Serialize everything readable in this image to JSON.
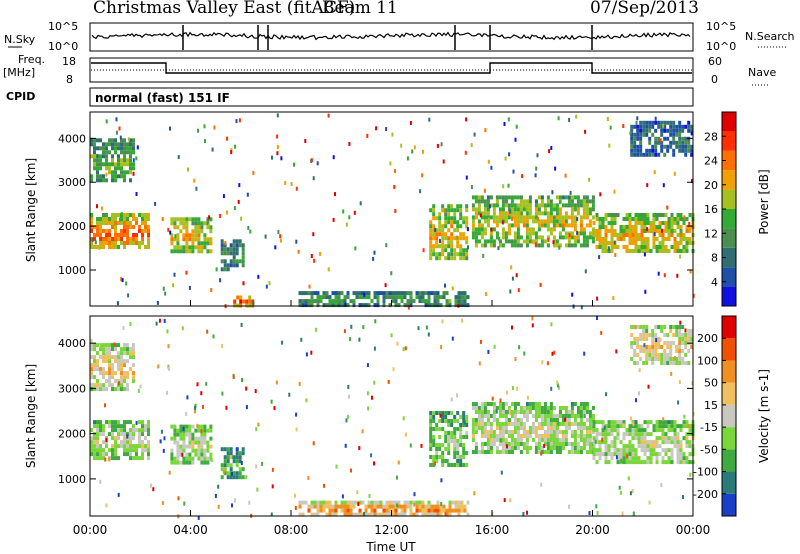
{
  "header": {
    "title": "Christmas Valley East (fitACF)",
    "beam": "Beam 11",
    "date": "07/Sep/2013"
  },
  "top_panels": {
    "nsky_label": "N.Sky",
    "nsky_ticks": [
      "10^5",
      "10^0"
    ],
    "nsearch_label": "N.Search",
    "nsearch_ticks": [
      "10^5",
      "10^0"
    ],
    "freq_label": "Freq.",
    "freq_unit": "[MHz]",
    "freq_ticks": [
      "18",
      "8"
    ],
    "nave_label": "Nave",
    "nave_ticks": [
      "60",
      "0"
    ],
    "cpid_label": "CPID",
    "cpid_value": "normal (fast) 151 IF"
  },
  "chart_data": [
    {
      "type": "heatmap",
      "name": "power",
      "ylabel": "Slant Range [km]",
      "yticks": [
        "1000",
        "2000",
        "3000",
        "4000"
      ],
      "ylim": [
        180,
        4600
      ],
      "colorbar_label": "Power [dB]",
      "colorbar_ticks": [
        "4",
        "8",
        "12",
        "16",
        "20",
        "24",
        "28"
      ],
      "colorbar_colors": [
        "#1010e0",
        "#1f4fa6",
        "#2f6f72",
        "#4a8f4f",
        "#33aa33",
        "#a6c020",
        "#f0a000",
        "#ff7000",
        "#ff3000",
        "#e00000"
      ],
      "echo_regions": [
        {
          "t": [
            0.0,
            2.3
          ],
          "r": [
            1500,
            2300
          ],
          "level": 0.78
        },
        {
          "t": [
            0.0,
            1.7
          ],
          "r": [
            3000,
            4000
          ],
          "level": 0.45
        },
        {
          "t": [
            3.2,
            4.8
          ],
          "r": [
            1400,
            2200
          ],
          "level": 0.65
        },
        {
          "t": [
            5.2,
            6.1
          ],
          "r": [
            1000,
            1700
          ],
          "level": 0.35
        },
        {
          "t": [
            5.7,
            6.5
          ],
          "r": [
            230,
            420
          ],
          "level": 0.9
        },
        {
          "t": [
            8.3,
            15.0
          ],
          "r": [
            230,
            520
          ],
          "level": 0.4
        },
        {
          "t": [
            13.5,
            15.0
          ],
          "r": [
            1300,
            2500
          ],
          "level": 0.65
        },
        {
          "t": [
            15.2,
            20.0
          ],
          "r": [
            1600,
            2700
          ],
          "level": 0.6
        },
        {
          "t": [
            20.0,
            24.0
          ],
          "r": [
            1400,
            2300
          ],
          "level": 0.65
        },
        {
          "t": [
            21.5,
            24.0
          ],
          "r": [
            3600,
            4400
          ],
          "level": 0.25
        }
      ]
    },
    {
      "type": "heatmap",
      "name": "velocity",
      "ylabel": "Slant Range [km]",
      "yticks": [
        "1000",
        "2000",
        "3000",
        "4000"
      ],
      "ylim": [
        180,
        4600
      ],
      "colorbar_label": "Velocity [m s-1]",
      "colorbar_ticks": [
        "200",
        "100",
        "50",
        "15",
        "-15",
        "-50",
        "-100",
        "-200"
      ],
      "colorbar_colors": [
        "#1a3fc8",
        "#2b7a7a",
        "#3faa3f",
        "#7ad63a",
        "#c8c8c0",
        "#f0c060",
        "#f09020",
        "#f05000",
        "#e00000"
      ],
      "echo_regions": [
        {
          "t": [
            0.0,
            2.3
          ],
          "r": [
            1500,
            2300
          ],
          "level": 0.5
        },
        {
          "t": [
            0.0,
            1.7
          ],
          "r": [
            3000,
            4000
          ],
          "level": 0.6
        },
        {
          "t": [
            3.2,
            4.8
          ],
          "r": [
            1400,
            2200
          ],
          "level": 0.5
        },
        {
          "t": [
            5.2,
            6.1
          ],
          "r": [
            1000,
            1700
          ],
          "level": 0.3
        },
        {
          "t": [
            8.3,
            15.0
          ],
          "r": [
            230,
            520
          ],
          "level": 0.75
        },
        {
          "t": [
            13.5,
            15.0
          ],
          "r": [
            1300,
            2500
          ],
          "level": 0.4
        },
        {
          "t": [
            15.2,
            20.0
          ],
          "r": [
            1600,
            2700
          ],
          "level": 0.5
        },
        {
          "t": [
            20.0,
            24.0
          ],
          "r": [
            1400,
            2300
          ],
          "level": 0.5
        },
        {
          "t": [
            21.5,
            24.0
          ],
          "r": [
            3600,
            4400
          ],
          "level": 0.6
        }
      ]
    }
  ],
  "x_axis": {
    "label": "Time UT",
    "xlim": [
      0,
      24
    ],
    "ticks": [
      "00:00",
      "04:00",
      "08:00",
      "12:00",
      "16:00",
      "20:00",
      "00:00"
    ]
  }
}
